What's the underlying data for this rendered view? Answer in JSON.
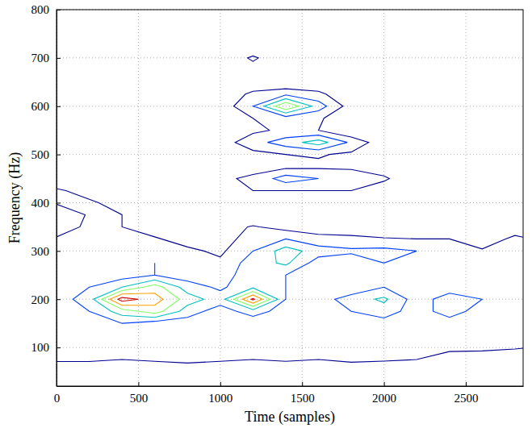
{
  "chart_data": {
    "type": "contour",
    "xlabel": "Time (samples)",
    "ylabel": "Frequency (Hz)",
    "xlim": [
      0,
      2850
    ],
    "ylim": [
      20,
      800
    ],
    "xticks": [
      0,
      500,
      1000,
      1500,
      2000,
      2500
    ],
    "yticks": [
      100,
      200,
      300,
      400,
      500,
      600,
      700,
      800
    ],
    "grid": true,
    "x": [
      0,
      200,
      400,
      600,
      800,
      1000,
      1200,
      1400,
      1600,
      1800,
      2000,
      2200,
      2400,
      2600,
      2800
    ],
    "y": [
      50,
      75,
      100,
      125,
      150,
      175,
      200,
      225,
      250,
      275,
      300,
      325,
      350,
      375,
      400,
      425,
      450,
      475,
      500,
      525,
      550,
      575,
      600,
      625,
      650,
      675,
      700,
      725,
      750
    ],
    "z": [
      [
        0,
        0.5,
        0.3,
        0.4,
        0.5,
        0.4,
        0.5,
        0.4,
        0.3,
        0.3,
        0.3,
        0.2,
        0,
        0,
        0
      ],
      [
        1.2,
        1.1,
        1,
        1.1,
        1.2,
        1.1,
        1,
        1.1,
        1,
        1.2,
        1.1,
        1,
        0.8,
        0.5,
        0.3
      ],
      [
        1.5,
        1.3,
        1.4,
        1.3,
        1.2,
        1.3,
        1.3,
        1.2,
        1.4,
        1.2,
        1.5,
        1.3,
        1.1,
        1.2,
        1.1
      ],
      [
        1.3,
        1.4,
        1.5,
        1.2,
        1.3,
        1.5,
        1.2,
        1.3,
        1.3,
        1.2,
        1.5,
        1.3,
        1.2,
        1.1,
        1.2
      ],
      [
        1.1,
        1.5,
        2,
        1.5,
        1.5,
        1.3,
        1.3,
        1.2,
        1.3,
        1.5,
        1.6,
        1.4,
        1.5,
        1.3,
        1.2
      ],
      [
        1.2,
        2,
        3.5,
        4.5,
        2.5,
        1.5,
        2.5,
        1.5,
        1.5,
        2,
        2.5,
        1.5,
        2.5,
        1.5,
        1.3
      ],
      [
        1.5,
        2.5,
        6.5,
        5.5,
        3.5,
        2.5,
        6.2,
        2,
        1.5,
        2.5,
        3.2,
        1.5,
        2.5,
        2,
        1.5
      ],
      [
        1.5,
        2,
        3,
        4.5,
        2.5,
        1.8,
        2.8,
        2,
        1.5,
        1.2,
        2,
        1.5,
        1.5,
        1.6,
        1.3
      ],
      [
        1.3,
        1.4,
        1.5,
        2,
        1.5,
        1.6,
        2.5,
        2,
        1.5,
        1.2,
        1.6,
        1.2,
        1.4,
        1.3,
        1.3
      ],
      [
        1.1,
        1.5,
        1.5,
        2,
        1.5,
        1.2,
        2.5,
        3.2,
        1.5,
        1.3,
        2,
        1.3,
        1.2,
        1.2,
        1.2
      ],
      [
        1.2,
        1.3,
        1.5,
        1.6,
        1.2,
        0.8,
        2,
        3.5,
        2.5,
        2.2,
        2.3,
        2,
        1.4,
        1.1,
        1.2
      ],
      [
        1.1,
        1.2,
        1.3,
        1.1,
        0.6,
        0.5,
        1.5,
        2,
        1.3,
        1.2,
        1.1,
        1,
        1,
        0.5,
        1.2
      ],
      [
        0.5,
        1.2,
        1,
        0.5,
        0.3,
        0.5,
        1.1,
        0.6,
        0.5,
        0.5,
        0,
        0,
        0,
        0,
        0.5
      ],
      [
        0.3,
        1.1,
        1,
        0.3,
        0.6,
        0.3,
        0,
        0.5,
        0,
        0,
        0,
        0.3,
        0,
        0,
        0
      ],
      [
        1.1,
        1.2,
        0.5,
        0,
        0,
        0,
        0.5,
        0,
        0,
        0,
        0,
        0,
        0.5,
        0,
        0.6
      ],
      [
        1.2,
        0.5,
        0,
        0,
        0,
        0.5,
        1,
        1,
        1,
        1,
        0.3,
        0,
        0,
        0,
        0
      ],
      [
        0,
        0,
        0,
        0,
        0,
        0.8,
        1.2,
        2.5,
        2,
        1.6,
        1.2,
        0,
        0,
        0,
        0
      ],
      [
        0,
        0,
        0,
        0,
        0,
        0,
        0.6,
        0.7,
        0.8,
        0.8,
        0.3,
        0,
        0,
        0,
        0
      ],
      [
        0,
        0,
        0,
        0,
        0,
        0,
        0.7,
        1,
        1.1,
        0.8,
        0,
        0,
        0,
        0,
        0
      ],
      [
        0,
        0,
        0,
        0,
        0,
        0.5,
        1.6,
        2.5,
        3.5,
        1.8,
        0.3,
        0,
        0,
        0,
        0
      ],
      [
        0,
        0,
        0,
        0,
        0,
        0,
        0.8,
        1.2,
        1,
        0,
        0,
        0,
        0,
        0,
        0
      ],
      [
        0,
        0,
        0,
        0,
        0,
        0,
        1,
        1.5,
        1.2,
        0,
        0,
        0,
        0,
        0,
        0
      ],
      [
        0,
        0,
        0,
        0,
        0,
        0.3,
        2,
        5,
        2.5,
        0.5,
        0,
        0,
        0,
        0,
        0
      ],
      [
        0,
        0,
        0,
        0,
        0,
        0,
        1.3,
        1.8,
        1.3,
        0,
        0,
        0,
        0,
        0,
        0
      ],
      [
        0,
        0,
        0,
        0,
        0,
        0,
        0,
        0,
        0,
        0,
        0,
        0,
        0,
        0,
        0
      ],
      [
        0,
        0,
        0,
        0,
        0,
        0,
        0.5,
        0,
        0,
        0,
        0,
        0,
        0,
        0,
        0
      ],
      [
        0,
        0,
        0,
        0,
        0,
        0,
        1.2,
        0,
        0,
        0,
        0,
        0,
        0,
        0,
        0
      ],
      [
        0,
        0,
        0,
        0,
        0,
        0,
        0,
        0,
        0,
        0,
        0,
        0,
        0,
        0,
        0
      ],
      [
        0,
        0,
        0,
        0,
        0,
        0,
        0,
        0,
        0,
        0,
        0,
        0,
        0,
        0,
        0
      ]
    ],
    "levels": [
      1,
      2,
      3,
      4,
      5,
      6
    ],
    "colors": [
      "#000090",
      "#0040ff",
      "#00c0c0",
      "#80ff60",
      "#ffa000",
      "#d00000"
    ]
  }
}
